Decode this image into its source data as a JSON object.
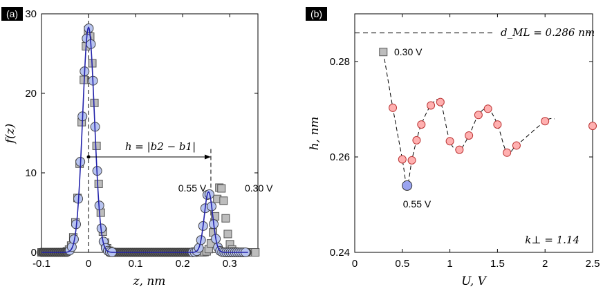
{
  "chart_data": [
    {
      "panel": "(a)",
      "type": "scatter",
      "xlabel": "z, nm",
      "ylabel": "f(z)",
      "xlim": [
        -0.1,
        0.36
      ],
      "ylim": [
        0,
        30
      ],
      "xticks": [
        -0.1,
        0,
        0.1,
        0.2,
        0.3
      ],
      "xtick_labels": [
        "-0.1",
        "0",
        "0.1",
        "0.2",
        "0.3"
      ],
      "yticks": [
        0,
        10,
        20,
        30
      ],
      "ytick_labels": [
        "0",
        "10",
        "20",
        "30"
      ],
      "annotation": "h = |b2 − b1|",
      "annotation_line": {
        "from_x": 0,
        "to_x": 0.26,
        "y": 12
      },
      "dashed_verticals": [
        0,
        0.26
      ],
      "series": [
        {
          "name": "0.30 V",
          "marker": "square",
          "color": "#bdbdbd",
          "peaks": [
            {
              "center": 0.0,
              "height": 28.0,
              "sigma": 0.014
            },
            {
              "center": 0.28,
              "height": 8.3,
              "sigma": 0.01
            }
          ],
          "x_range": [
            -0.1,
            0.355
          ]
        },
        {
          "name": "0.55 V",
          "marker": "circle",
          "color": "#b8c4f0",
          "peaks": [
            {
              "center": 0.0,
              "height": 28.2,
              "sigma": 0.013
            },
            {
              "center": 0.255,
              "height": 7.5,
              "sigma": 0.009
            }
          ],
          "x_range": [
            -0.04,
            0.335
          ]
        }
      ],
      "fit_line": {
        "color": "#2222aa",
        "peaks": [
          {
            "center": 0.0,
            "height": 28.3,
            "sigma": 0.0125
          },
          {
            "center": 0.255,
            "height": 7.6,
            "sigma": 0.009
          }
        ]
      },
      "labels": [
        {
          "text": "0.55 V",
          "color": "#1a1ad0"
        },
        {
          "text": "0.30 V",
          "color": "#000000"
        }
      ]
    },
    {
      "panel": "(b)",
      "type": "line",
      "xlabel": "U, V",
      "ylabel": "h, nm",
      "xlim": [
        0,
        2.5
      ],
      "ylim": [
        0.24,
        0.29
      ],
      "xticks": [
        0,
        0.5,
        1,
        1.5,
        2,
        2.5
      ],
      "xtick_labels": [
        "0",
        "0.5",
        "1",
        "1.5",
        "2",
        "2.5"
      ],
      "yticks": [
        0.24,
        0.26,
        0.28
      ],
      "ytick_labels": [
        "0.24",
        "0.26",
        "0.28"
      ],
      "reference_line": {
        "label": "d_ML = 0.286 nm",
        "y": 0.286
      },
      "k_label": "k⊥ = 1.14",
      "points": [
        {
          "x": 0.3,
          "y": 0.282,
          "marker": "square",
          "color": "#bdbdbd"
        },
        {
          "x": 0.4,
          "y": 0.2703,
          "marker": "circle",
          "color": "#ffb0b0"
        },
        {
          "x": 0.5,
          "y": 0.2595,
          "marker": "circle",
          "color": "#ffb0b0"
        },
        {
          "x": 0.55,
          "y": 0.254,
          "marker": "circle-large",
          "color": "#9aa4f0"
        },
        {
          "x": 0.6,
          "y": 0.2593,
          "marker": "circle",
          "color": "#ffb0b0"
        },
        {
          "x": 0.65,
          "y": 0.2635,
          "marker": "circle",
          "color": "#ffb0b0"
        },
        {
          "x": 0.7,
          "y": 0.2668,
          "marker": "circle",
          "color": "#ffb0b0"
        },
        {
          "x": 0.8,
          "y": 0.2708,
          "marker": "circle",
          "color": "#ffb0b0"
        },
        {
          "x": 0.9,
          "y": 0.2715,
          "marker": "circle",
          "color": "#ffb0b0"
        },
        {
          "x": 1.0,
          "y": 0.2633,
          "marker": "circle",
          "color": "#ffb0b0"
        },
        {
          "x": 1.1,
          "y": 0.2615,
          "marker": "circle",
          "color": "#ffb0b0"
        },
        {
          "x": 1.2,
          "y": 0.2645,
          "marker": "circle",
          "color": "#ffb0b0"
        },
        {
          "x": 1.3,
          "y": 0.2688,
          "marker": "circle",
          "color": "#ffb0b0"
        },
        {
          "x": 1.4,
          "y": 0.2701,
          "marker": "circle",
          "color": "#ffb0b0"
        },
        {
          "x": 1.5,
          "y": 0.2668,
          "marker": "circle",
          "color": "#ffb0b0"
        },
        {
          "x": 1.6,
          "y": 0.2609,
          "marker": "circle",
          "color": "#ffb0b0"
        },
        {
          "x": 1.7,
          "y": 0.2624,
          "marker": "circle",
          "color": "#ffb0b0"
        },
        {
          "x": 2.0,
          "y": 0.2675,
          "marker": "circle",
          "color": "#ffb0b0"
        },
        {
          "x": 2.5,
          "y": 0.2665,
          "marker": "circle",
          "color": "#ffb0b0"
        }
      ],
      "dashed_curve_x_end": 2.1,
      "dashed_curve_y_end": 0.268,
      "labels": [
        {
          "text": "0.30 V",
          "color": "#000000"
        },
        {
          "text": "0.55 V",
          "color": "#1a1ad0"
        }
      ]
    }
  ]
}
